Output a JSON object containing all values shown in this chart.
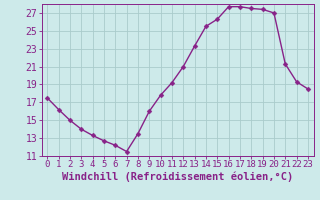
{
  "x": [
    0,
    1,
    2,
    3,
    4,
    5,
    6,
    7,
    8,
    9,
    10,
    11,
    12,
    13,
    14,
    15,
    16,
    17,
    18,
    19,
    20,
    21,
    22,
    23
  ],
  "y": [
    17.5,
    16.2,
    15.0,
    14.0,
    13.3,
    12.7,
    12.2,
    11.5,
    13.5,
    16.0,
    17.8,
    19.2,
    21.0,
    23.3,
    25.5,
    26.3,
    27.7,
    27.7,
    27.5,
    27.4,
    27.0,
    21.3,
    19.3,
    18.5
  ],
  "background_color": "#cdeaea",
  "line_color": "#882288",
  "marker_color": "#882288",
  "grid_color": "#aacccc",
  "axis_color": "#882288",
  "tick_color": "#882288",
  "xlabel": "Windchill (Refroidissement éolien,°C)",
  "ylim": [
    11,
    28
  ],
  "xlim": [
    -0.5,
    23.5
  ],
  "yticks": [
    11,
    13,
    15,
    17,
    19,
    21,
    23,
    25,
    27
  ],
  "xticks": [
    0,
    1,
    2,
    3,
    4,
    5,
    6,
    7,
    8,
    9,
    10,
    11,
    12,
    13,
    14,
    15,
    16,
    17,
    18,
    19,
    20,
    21,
    22,
    23
  ],
  "xtick_labels": [
    "0",
    "1",
    "2",
    "3",
    "4",
    "5",
    "6",
    "7",
    "8",
    "9",
    "10",
    "11",
    "12",
    "13",
    "14",
    "15",
    "16",
    "17",
    "18",
    "19",
    "20",
    "21",
    "22",
    "23"
  ],
  "font_color": "#882288",
  "xlabel_fontsize": 7.5,
  "tick_fontsize": 6.5,
  "linewidth": 1.0,
  "markersize": 2.5,
  "marker": "D"
}
